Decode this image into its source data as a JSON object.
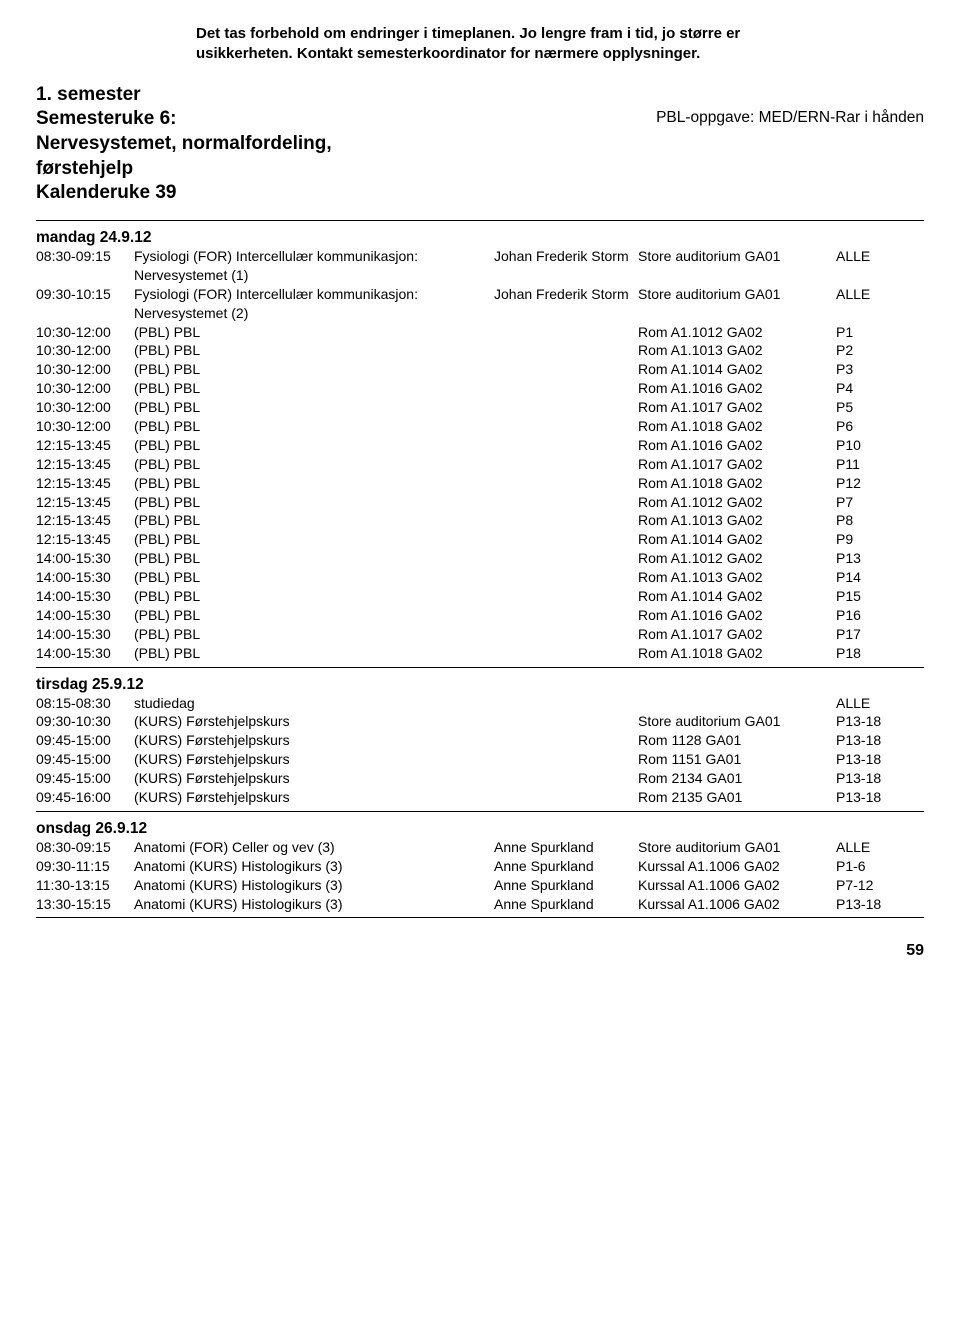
{
  "disclaimer": "Det tas forbehold om endringer i timeplanen. Jo lengre fram i tid, jo større er usikkerheten. Kontakt semesterkoordinator for nærmere opplysninger.",
  "header": {
    "line1": "1. semester",
    "line2": "Semesteruke 6:",
    "line3": "Nervesystemet, normalfordeling,",
    "line4": "førstehjelp",
    "line5": "Kalenderuke 39",
    "right": "PBL-oppgave: MED/ERN-Rar i hånden"
  },
  "days": [
    {
      "heading": "mandag 24.9.12",
      "rows": [
        {
          "time": "08:30-09:15",
          "desc": "Fysiologi (FOR) Intercellulær kommunikasjon: Nervesystemet (1)",
          "person": "Johan Frederik Storm",
          "room": "Store auditorium GA01",
          "group": "ALLE"
        },
        {
          "time": "09:30-10:15",
          "desc": "Fysiologi (FOR) Intercellulær kommunikasjon: Nervesystemet (2)",
          "person": "Johan Frederik Storm",
          "room": "Store auditorium GA01",
          "group": "ALLE"
        },
        {
          "time": "10:30-12:00",
          "desc": "(PBL) PBL",
          "person": "",
          "room": "Rom A1.1012 GA02",
          "group": "P1"
        },
        {
          "time": "10:30-12:00",
          "desc": "(PBL) PBL",
          "person": "",
          "room": "Rom A1.1013 GA02",
          "group": "P2"
        },
        {
          "time": "10:30-12:00",
          "desc": "(PBL) PBL",
          "person": "",
          "room": "Rom A1.1014 GA02",
          "group": "P3"
        },
        {
          "time": "10:30-12:00",
          "desc": "(PBL) PBL",
          "person": "",
          "room": "Rom A1.1016 GA02",
          "group": "P4"
        },
        {
          "time": "10:30-12:00",
          "desc": "(PBL) PBL",
          "person": "",
          "room": "Rom A1.1017 GA02",
          "group": "P5"
        },
        {
          "time": "10:30-12:00",
          "desc": "(PBL) PBL",
          "person": "",
          "room": "Rom A1.1018 GA02",
          "group": "P6"
        },
        {
          "time": "12:15-13:45",
          "desc": "(PBL) PBL",
          "person": "",
          "room": "Rom A1.1016 GA02",
          "group": "P10"
        },
        {
          "time": "12:15-13:45",
          "desc": "(PBL) PBL",
          "person": "",
          "room": "Rom A1.1017 GA02",
          "group": "P11"
        },
        {
          "time": "12:15-13:45",
          "desc": "(PBL) PBL",
          "person": "",
          "room": "Rom A1.1018 GA02",
          "group": "P12"
        },
        {
          "time": "12:15-13:45",
          "desc": "(PBL) PBL",
          "person": "",
          "room": "Rom A1.1012 GA02",
          "group": "P7"
        },
        {
          "time": "12:15-13:45",
          "desc": "(PBL) PBL",
          "person": "",
          "room": "Rom A1.1013 GA02",
          "group": "P8"
        },
        {
          "time": "12:15-13:45",
          "desc": "(PBL) PBL",
          "person": "",
          "room": "Rom A1.1014 GA02",
          "group": "P9"
        },
        {
          "time": "14:00-15:30",
          "desc": "(PBL) PBL",
          "person": "",
          "room": "Rom A1.1012 GA02",
          "group": "P13"
        },
        {
          "time": "14:00-15:30",
          "desc": "(PBL) PBL",
          "person": "",
          "room": "Rom A1.1013 GA02",
          "group": "P14"
        },
        {
          "time": "14:00-15:30",
          "desc": "(PBL) PBL",
          "person": "",
          "room": "Rom A1.1014 GA02",
          "group": "P15"
        },
        {
          "time": "14:00-15:30",
          "desc": "(PBL) PBL",
          "person": "",
          "room": "Rom A1.1016 GA02",
          "group": "P16"
        },
        {
          "time": "14:00-15:30",
          "desc": "(PBL) PBL",
          "person": "",
          "room": "Rom A1.1017 GA02",
          "group": "P17"
        },
        {
          "time": "14:00-15:30",
          "desc": "(PBL) PBL",
          "person": "",
          "room": "Rom A1.1018 GA02",
          "group": "P18"
        }
      ]
    },
    {
      "heading": "tirsdag 25.9.12",
      "rows": [
        {
          "time": "08:15-08:30",
          "desc": "studiedag",
          "person": "",
          "room": "",
          "group": "ALLE"
        },
        {
          "time": "09:30-10:30",
          "desc": "(KURS) Førstehjelpskurs",
          "person": "",
          "room": "Store auditorium GA01",
          "group": "P13-18"
        },
        {
          "time": "09:45-15:00",
          "desc": "(KURS) Førstehjelpskurs",
          "person": "",
          "room": "Rom 1128 GA01",
          "group": "P13-18"
        },
        {
          "time": "09:45-15:00",
          "desc": "(KURS) Førstehjelpskurs",
          "person": "",
          "room": "Rom 1151 GA01",
          "group": "P13-18"
        },
        {
          "time": "09:45-15:00",
          "desc": "(KURS) Førstehjelpskurs",
          "person": "",
          "room": "Rom 2134 GA01",
          "group": "P13-18"
        },
        {
          "time": "09:45-16:00",
          "desc": "(KURS) Førstehjelpskurs",
          "person": "",
          "room": "Rom 2135 GA01",
          "group": "P13-18"
        }
      ]
    },
    {
      "heading": "onsdag 26.9.12",
      "rows": [
        {
          "time": "08:30-09:15",
          "desc": "Anatomi (FOR) Celler og vev (3)",
          "person": "Anne Spurkland",
          "room": "Store auditorium GA01",
          "group": "ALLE"
        },
        {
          "time": "09:30-11:15",
          "desc": "Anatomi (KURS) Histologikurs (3)",
          "person": "Anne Spurkland",
          "room": "Kurssal A1.1006 GA02",
          "group": "P1-6"
        },
        {
          "time": "11:30-13:15",
          "desc": "Anatomi (KURS) Histologikurs (3)",
          "person": "Anne Spurkland",
          "room": "Kurssal A1.1006 GA02",
          "group": "P7-12"
        },
        {
          "time": "13:30-15:15",
          "desc": "Anatomi (KURS) Histologikurs (3)",
          "person": "Anne Spurkland",
          "room": "Kurssal A1.1006 GA02",
          "group": "P13-18"
        }
      ]
    }
  ],
  "page_number": "59"
}
